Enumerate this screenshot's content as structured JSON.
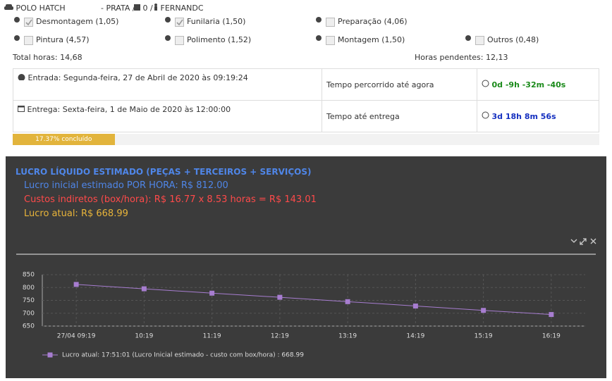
{
  "header": {
    "vehicle": "POLO HATCH",
    "color": "- PRATA /",
    "boxes": "0 /",
    "user": "FERNANDC"
  },
  "services": [
    {
      "label": "Desmontagem (1,05)",
      "checked": true
    },
    {
      "label": "Funilaria (1,50)",
      "checked": true
    },
    {
      "label": "Preparação (4,06)",
      "checked": false
    },
    {
      "label": "Pintura (4,57)",
      "checked": false
    },
    {
      "label": "Polimento (1,52)",
      "checked": false
    },
    {
      "label": "Montagem (1,50)",
      "checked": false
    },
    {
      "label": "Outros (0,48)",
      "checked": false
    }
  ],
  "totals": {
    "total": "Total horas: 14,68",
    "pending": "Horas pendentes: 12,13"
  },
  "table": {
    "rows": [
      [
        "Entrada: Segunda-feira, 27 de Abril de 2020 às 09:19:24",
        "Tempo percorrido até agora",
        "0d -9h -32m -40s"
      ],
      [
        "Entrega: Sexta-feira, 1 de Maio de 2020 às 12:00:00",
        "Tempo até entrega",
        "3d 18h 8m 56s"
      ]
    ]
  },
  "progress": {
    "value": 17.37,
    "label": "17.37% concluído"
  },
  "panel": {
    "title": "LUCRO LÍQUIDO ESTIMADO (PEÇAS + TERCEIROS + SERVIÇOS)",
    "lines": [
      "Lucro inicial estimado POR HORA: R$ 812.00",
      "Custos indiretos (box/hora): R$ 16.77 x 8.53 horas = R$ 143.01",
      "Lucro atual: R$ 668.99"
    ]
  },
  "chart_data": {
    "type": "line",
    "categories": [
      "27/04 09:19",
      "10:19",
      "11:19",
      "12:19",
      "13:19",
      "14:19",
      "15:19",
      "16:19"
    ],
    "series": [
      {
        "name": "Lucro atual: 17:51:01 (Lucro Inicial estimado - custo com box/hora) : 668.99",
        "color": "#a77dd0",
        "values": [
          812,
          795,
          778,
          762,
          745,
          728,
          711,
          695
        ]
      }
    ],
    "ylim": [
      650,
      850
    ],
    "yticks": [
      650,
      700,
      750,
      800,
      850
    ],
    "grid": true
  }
}
